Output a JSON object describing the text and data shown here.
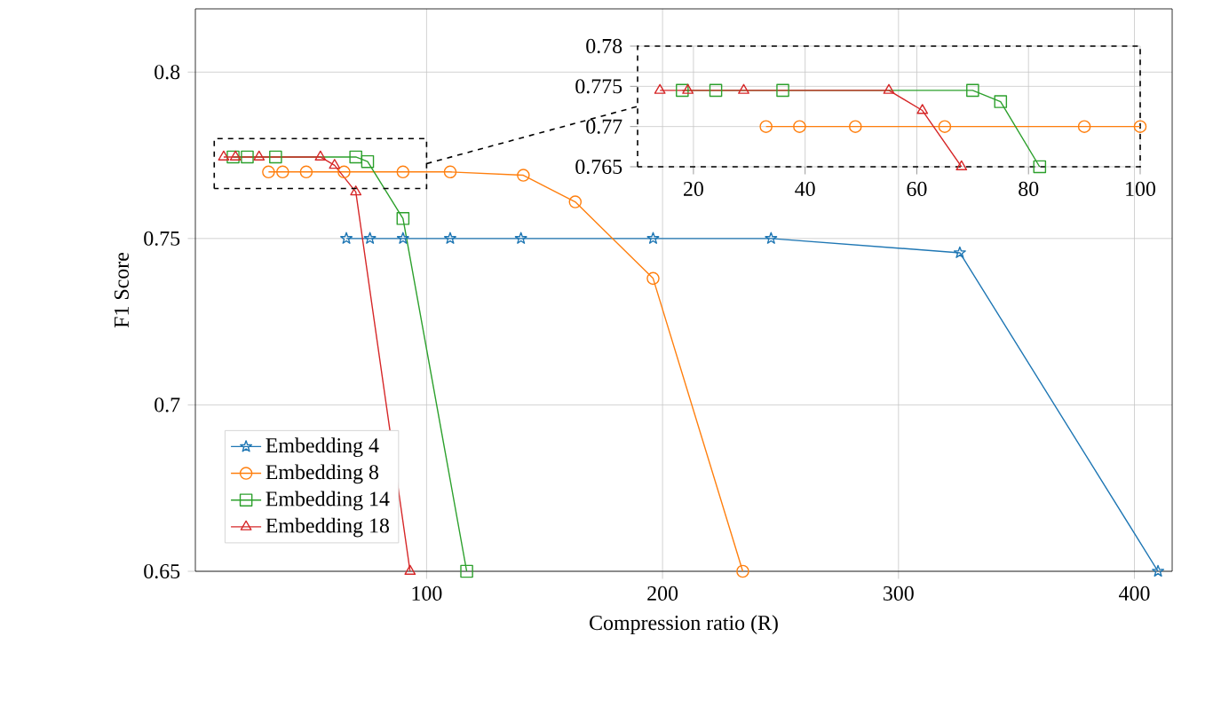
{
  "chart_data": [
    {
      "type": "line",
      "xlabel": "Compression ratio (R)",
      "ylabel": "F1 Score",
      "xlim": [
        2,
        416
      ],
      "ylim": [
        0.65,
        0.819
      ],
      "xticks": [
        100,
        200,
        300,
        400
      ],
      "yticks": [
        0.65,
        0.7,
        0.75,
        0.8
      ],
      "grid": true,
      "legend": "bottom left",
      "series": [
        {
          "name": "Embedding 4",
          "color": "#1f77b4",
          "marker": "star",
          "x": [
            66,
            76,
            90,
            110,
            140,
            196,
            246,
            326,
            410
          ],
          "values": [
            0.75,
            0.75,
            0.75,
            0.75,
            0.75,
            0.75,
            0.75,
            0.7457,
            0.65
          ]
        },
        {
          "name": "Embedding 8",
          "color": "#ff7f0e",
          "marker": "circle",
          "x": [
            33,
            39,
            49,
            65,
            90,
            110,
            141,
            163,
            196,
            234
          ],
          "values": [
            0.77,
            0.77,
            0.77,
            0.77,
            0.77,
            0.77,
            0.769,
            0.761,
            0.738,
            0.65
          ]
        },
        {
          "name": "Embedding 14",
          "color": "#2ca02c",
          "marker": "square",
          "x": [
            18,
            24,
            36,
            70,
            75,
            90,
            117
          ],
          "values": [
            0.7745,
            0.7745,
            0.7745,
            0.7745,
            0.7731,
            0.756,
            0.65
          ]
        },
        {
          "name": "Embedding 18",
          "color": "#d62728",
          "marker": "triangle",
          "x": [
            14,
            19,
            29,
            55,
            61,
            70,
            93
          ],
          "values": [
            0.7745,
            0.7745,
            0.7745,
            0.7745,
            0.772,
            0.764,
            0.65
          ]
        }
      ]
    },
    {
      "type": "line",
      "xlim": [
        10,
        100
      ],
      "ylim": [
        0.765,
        0.78
      ],
      "xticks": [
        20,
        40,
        60,
        80,
        100
      ],
      "yticks": [
        0.765,
        0.77,
        0.775,
        0.78
      ],
      "grid": true,
      "series": [
        {
          "color": "#ff7f0e",
          "marker": "circle",
          "x": [
            33,
            39,
            49,
            65,
            90,
            100
          ],
          "values": [
            0.77,
            0.77,
            0.77,
            0.77,
            0.77,
            0.77
          ]
        },
        {
          "color": "#2ca02c",
          "marker": "square",
          "x": [
            18,
            24,
            36,
            70,
            75,
            82
          ],
          "values": [
            0.7745,
            0.7745,
            0.7745,
            0.7745,
            0.7731,
            0.765
          ]
        },
        {
          "color": "#d62728",
          "marker": "triangle",
          "x": [
            14,
            19,
            29,
            55,
            61,
            68
          ],
          "values": [
            0.7745,
            0.7745,
            0.7745,
            0.7745,
            0.772,
            0.765
          ]
        }
      ]
    }
  ]
}
